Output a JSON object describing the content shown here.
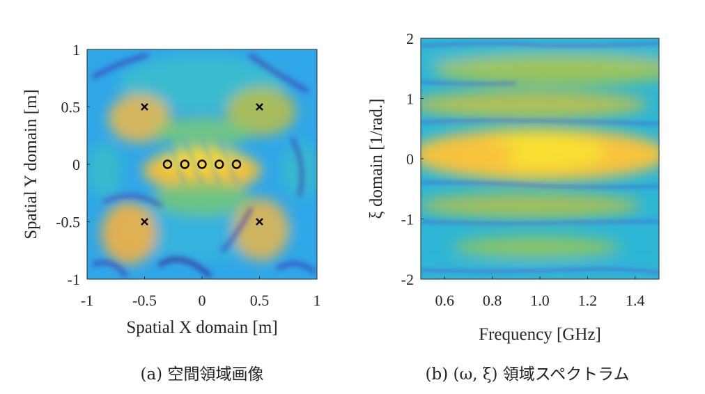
{
  "chart_data": [
    {
      "type": "heatmap",
      "xlabel": "Spatial X domain [m]",
      "ylabel": "Spatial Y domain [m]",
      "xlim": [
        -1,
        1
      ],
      "ylim": [
        -1,
        1
      ],
      "xticks": [
        "-1",
        "-0.5",
        "0",
        "0.5",
        "1"
      ],
      "xtick_values": [
        -1,
        -0.5,
        0,
        0.5,
        1
      ],
      "yticks": [
        "1",
        "0.5",
        "0",
        "-0.5",
        "-1"
      ],
      "ytick_values": [
        1,
        0.5,
        0,
        -0.5,
        -1
      ],
      "colormap": "parula",
      "caption": "(a) 空間領域画像",
      "markers": {
        "circles": [
          [
            -0.3,
            0
          ],
          [
            -0.15,
            0
          ],
          [
            0,
            0
          ],
          [
            0.15,
            0
          ],
          [
            0.3,
            0
          ]
        ],
        "crosses": [
          [
            -0.5,
            0.5
          ],
          [
            0.5,
            0.5
          ],
          [
            -0.5,
            -0.5
          ],
          [
            0.5,
            -0.5
          ]
        ]
      }
    },
    {
      "type": "heatmap",
      "xlabel": "Frequency [GHz]",
      "ylabel": "ξ domain [1/rad.]",
      "xlim": [
        0.5,
        1.5
      ],
      "ylim": [
        -2,
        2
      ],
      "xticks": [
        "0.6",
        "0.8",
        "1.0",
        "1.2",
        "1.4"
      ],
      "xtick_values": [
        0.6,
        0.8,
        1.0,
        1.2,
        1.4
      ],
      "yticks": [
        "2",
        "1",
        "0",
        "-1",
        "-2"
      ],
      "ytick_values": [
        2,
        1,
        0,
        -1,
        -2
      ],
      "colormap": "parula",
      "caption": "(b) (ω, ξ) 領域スペクトラム"
    }
  ],
  "colors": {
    "cmap_low": "#3e26a8",
    "cmap_mid_low": "#2e9df5",
    "cmap_mid": "#2bc8a0",
    "cmap_mid_high": "#a8c831",
    "cmap_high": "#f9fb15"
  }
}
